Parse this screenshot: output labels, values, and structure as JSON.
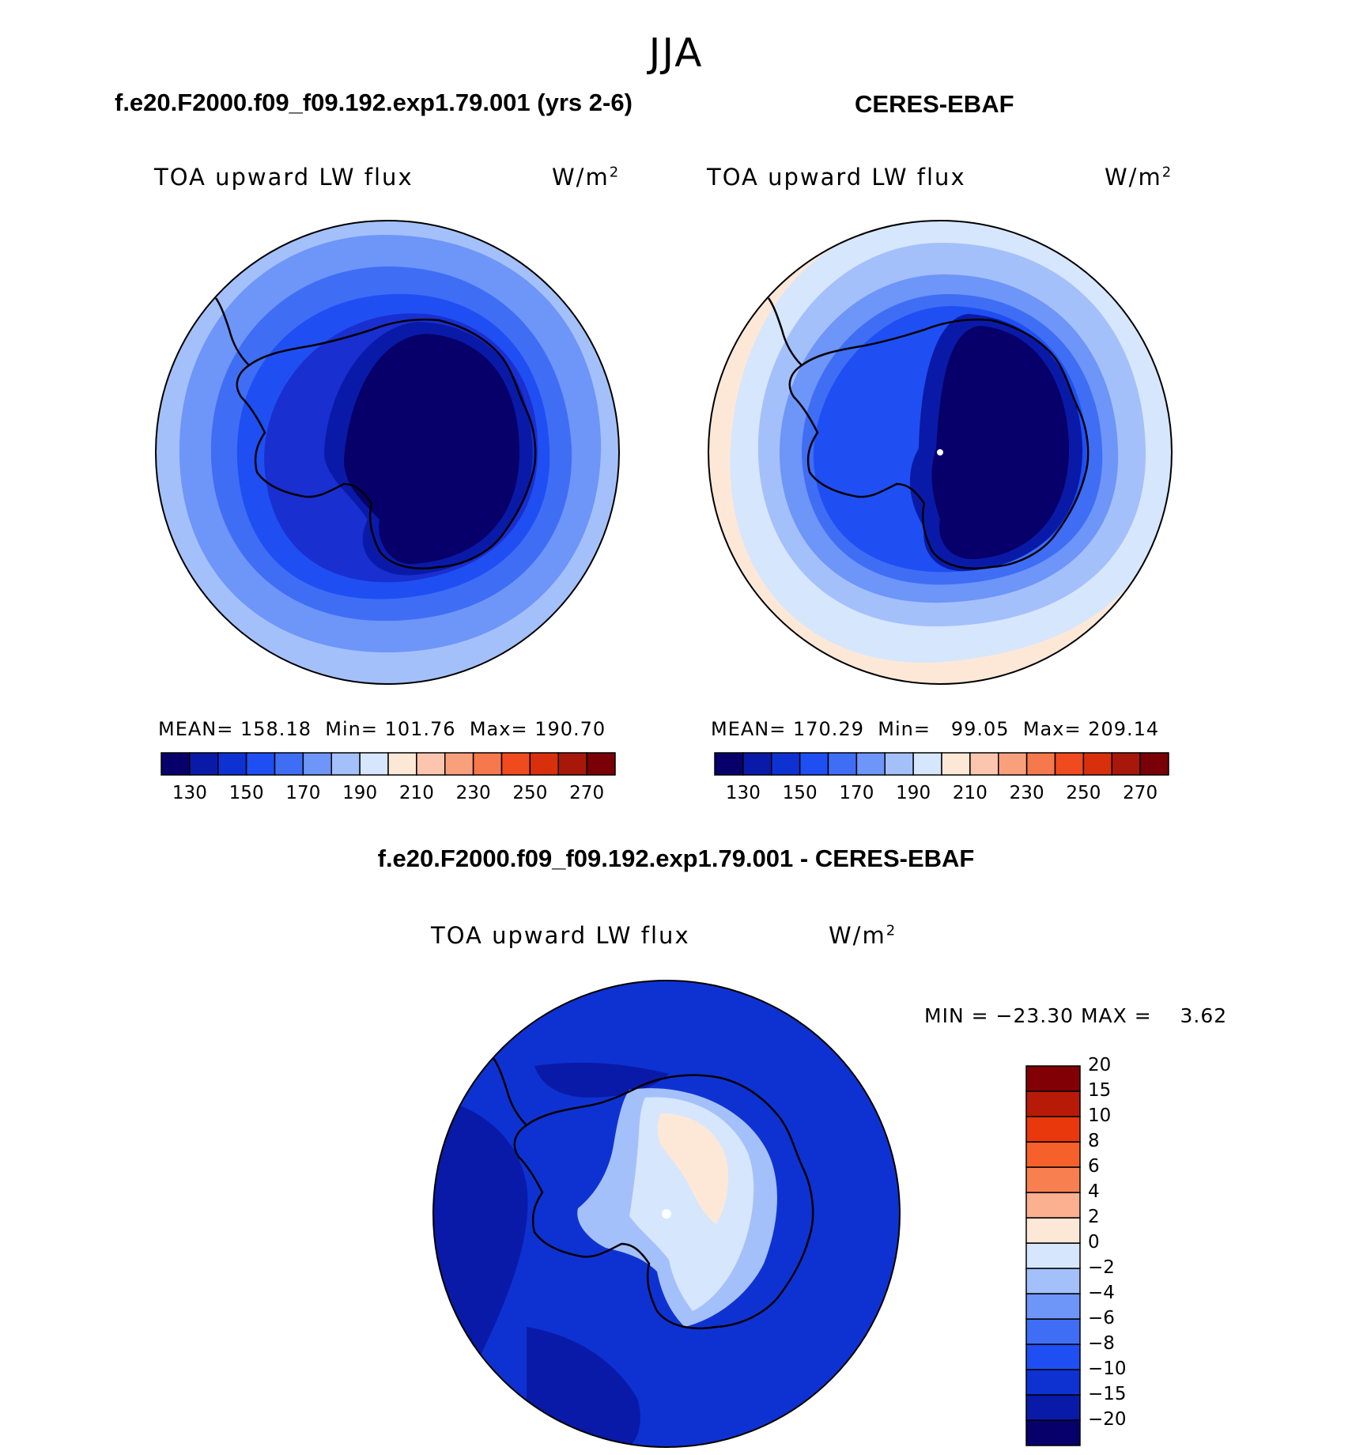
{
  "season": "JJA",
  "panels": [
    {
      "title": "f.e20.F2000.f09_f09.192.exp1.79.001 (yrs 2-6)",
      "variable": "TOA upward LW flux",
      "units_base": "W/m",
      "units_exp": "2",
      "stats": {
        "mean_label": "MEAN=",
        "mean": "158.18",
        "min_label": "Min=",
        "min": "101.76",
        "max_label": "Max=",
        "max": "190.70"
      }
    },
    {
      "title": "CERES-EBAF",
      "variable": "TOA upward LW flux",
      "units_base": "W/m",
      "units_exp": "2",
      "stats": {
        "mean_label": "MEAN=",
        "mean": "170.29",
        "min_label": "Min=",
        "min": "99.05",
        "max_label": "Max=",
        "max": "209.14"
      }
    },
    {
      "title": "f.e20.F2000.f09_f09.192.exp1.79.001 - CERES-EBAF",
      "variable": "TOA upward LW flux",
      "units_base": "W/m",
      "units_exp": "2",
      "stats": {
        "min_label": "MIN =",
        "min": "−23.30",
        "max_label": "MAX =",
        "max": "3.62"
      }
    }
  ],
  "colorbar_main": {
    "colors": [
      "#08006a",
      "#0a1aa8",
      "#0e32d2",
      "#1f4ff2",
      "#3f6ef5",
      "#6e95f8",
      "#a4c0fb",
      "#d6e6fd",
      "#fde8d8",
      "#fbc6ad",
      "#f8a07c",
      "#f6784d",
      "#f04a1f",
      "#d8300c",
      "#a8180a",
      "#780006"
    ],
    "ticks": [
      "130",
      "150",
      "170",
      "190",
      "210",
      "230",
      "250",
      "270"
    ]
  },
  "colorbar_diff": {
    "colors": [
      "#08006a",
      "#0a1aa8",
      "#0e32d2",
      "#1f4ff2",
      "#3f6ef5",
      "#6e95f8",
      "#a4c0fb",
      "#d6e6fd",
      "#fde8d8",
      "#fbb090",
      "#f88050",
      "#f6602a",
      "#e8380c",
      "#b81a08",
      "#800006"
    ],
    "ticks": [
      "−20",
      "−15",
      "−10",
      "−8",
      "−6",
      "−4",
      "−2",
      "0",
      "2",
      "4",
      "6",
      "8",
      "10",
      "15",
      "20"
    ]
  },
  "map_colors": {
    "level_140": "#1a2fd0",
    "level_150": "#1f4ff2",
    "level_160": "#3f6ef5",
    "level_170": "#6e95f8",
    "level_180": "#a4c0fb",
    "level_190": "#d6e6fd",
    "level_200": "#fde8d8",
    "level_low": "#08006a",
    "level_lower": "#0a1aa8",
    "diff_bg": "#0e32d2",
    "diff_dark": "#0a1aa8",
    "diff_light": "#a4c0fb",
    "diff_pale": "#d6e6fd",
    "diff_warm": "#fde8d8"
  }
}
